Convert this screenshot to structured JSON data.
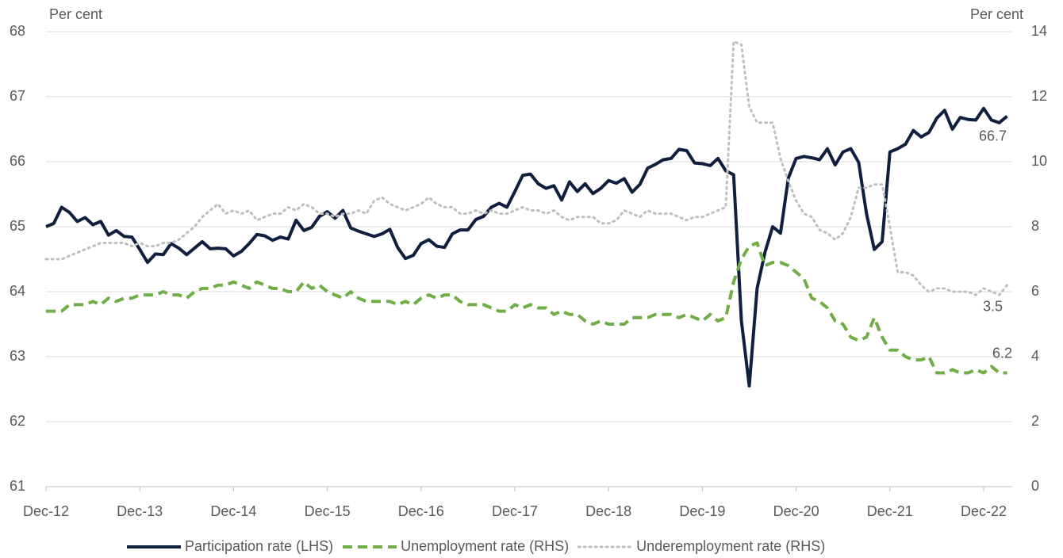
{
  "chart_data": {
    "type": "line",
    "y_label": "Per cent",
    "y2_label": "Per cent",
    "categories": [
      "Dec-12",
      null,
      null,
      null,
      null,
      null,
      null,
      null,
      null,
      null,
      null,
      null,
      "Dec-13",
      null,
      null,
      null,
      null,
      null,
      null,
      null,
      null,
      null,
      null,
      null,
      "Dec-14",
      null,
      null,
      null,
      null,
      null,
      null,
      null,
      null,
      null,
      null,
      null,
      "Dec-15",
      null,
      null,
      null,
      null,
      null,
      null,
      null,
      null,
      null,
      null,
      null,
      "Dec-16",
      null,
      null,
      null,
      null,
      null,
      null,
      null,
      null,
      null,
      null,
      null,
      "Dec-17",
      null,
      null,
      null,
      null,
      null,
      null,
      null,
      null,
      null,
      null,
      null,
      "Dec-18",
      null,
      null,
      null,
      null,
      null,
      null,
      null,
      null,
      null,
      null,
      null,
      "Dec-19",
      null,
      null,
      null,
      null,
      null,
      null,
      null,
      null,
      null,
      null,
      null,
      "Dec-20",
      null,
      null,
      null,
      null,
      null,
      null,
      null,
      null,
      null,
      null,
      null,
      "Dec-21",
      null,
      null,
      null,
      null,
      null,
      null,
      null,
      null,
      null,
      null,
      null,
      "Dec-22",
      null,
      null,
      null
    ],
    "series": [
      {
        "name": "Participation rate (LHS)",
        "color": "#0f1f3d",
        "dash": "solid",
        "axis": "y",
        "values": [
          65.0,
          65.05,
          65.3,
          65.22,
          65.08,
          65.14,
          65.03,
          65.08,
          64.87,
          64.94,
          64.85,
          64.84,
          64.65,
          64.45,
          64.58,
          64.57,
          64.74,
          64.67,
          64.57,
          64.67,
          64.77,
          64.66,
          64.67,
          64.66,
          64.55,
          64.62,
          64.74,
          64.88,
          64.86,
          64.79,
          64.84,
          64.81,
          65.1,
          64.94,
          64.99,
          65.16,
          65.23,
          65.13,
          65.25,
          64.98,
          64.93,
          64.89,
          64.85,
          64.89,
          64.96,
          64.68,
          64.51,
          64.56,
          64.74,
          64.8,
          64.7,
          64.68,
          64.89,
          64.95,
          64.95,
          65.11,
          65.16,
          65.3,
          65.36,
          65.3,
          65.54,
          65.79,
          65.81,
          65.66,
          65.59,
          65.63,
          65.41,
          65.69,
          65.54,
          65.66,
          65.51,
          65.59,
          65.71,
          65.67,
          65.74,
          65.53,
          65.65,
          65.9,
          65.96,
          66.03,
          66.05,
          66.19,
          66.17,
          65.98,
          65.97,
          65.94,
          66.05,
          65.86,
          65.8,
          63.55,
          62.55,
          64.05,
          64.6,
          65.0,
          64.9,
          65.75,
          66.05,
          66.08,
          66.06,
          66.03,
          66.2,
          65.95,
          66.15,
          66.2,
          65.99,
          65.2,
          64.65,
          64.77,
          66.15,
          66.2,
          66.27,
          66.48,
          66.38,
          66.45,
          66.67,
          66.79,
          66.5,
          66.68,
          66.65,
          66.64,
          66.82,
          66.64,
          66.6,
          66.7
        ]
      },
      {
        "name": "Unemployment rate (RHS)",
        "color": "#70ad47",
        "dash": "dashed",
        "axis": "y2",
        "values": [
          5.4,
          5.4,
          5.4,
          5.6,
          5.6,
          5.6,
          5.7,
          5.6,
          5.8,
          5.7,
          5.8,
          5.8,
          5.9,
          5.9,
          5.9,
          6.0,
          5.9,
          5.9,
          5.8,
          6.0,
          6.1,
          6.1,
          6.2,
          6.2,
          6.3,
          6.2,
          6.1,
          6.3,
          6.2,
          6.1,
          6.1,
          6.0,
          6.0,
          6.3,
          6.1,
          6.2,
          6.0,
          5.9,
          5.8,
          6.0,
          5.8,
          5.7,
          5.7,
          5.7,
          5.7,
          5.6,
          5.7,
          5.6,
          5.8,
          5.9,
          5.8,
          5.9,
          5.9,
          5.7,
          5.6,
          5.6,
          5.6,
          5.5,
          5.4,
          5.4,
          5.6,
          5.5,
          5.6,
          5.5,
          5.5,
          5.3,
          5.4,
          5.3,
          5.3,
          5.1,
          5.0,
          5.1,
          5.0,
          5.0,
          5.0,
          5.2,
          5.2,
          5.2,
          5.3,
          5.3,
          5.3,
          5.2,
          5.3,
          5.2,
          5.1,
          5.3,
          5.1,
          5.2,
          6.3,
          7.0,
          7.4,
          7.5,
          6.8,
          6.9,
          6.9,
          6.8,
          6.6,
          6.4,
          5.8,
          5.7,
          5.5,
          5.1,
          5.0,
          4.6,
          4.5,
          4.6,
          5.2,
          4.6,
          4.2,
          4.2,
          4.0,
          3.9,
          3.9,
          4.0,
          3.5,
          3.5,
          3.6,
          3.5,
          3.5,
          3.6,
          3.5,
          3.7,
          3.5,
          3.5
        ]
      },
      {
        "name": "Underemployment rate (RHS)",
        "color": "#bfbfbf",
        "dash": "dotted",
        "axis": "y2",
        "values": [
          7.0,
          7.0,
          7.0,
          7.1,
          7.2,
          7.3,
          7.4,
          7.5,
          7.5,
          7.5,
          7.5,
          7.4,
          7.5,
          7.4,
          7.4,
          7.5,
          7.5,
          7.6,
          7.8,
          8.0,
          8.3,
          8.5,
          8.7,
          8.4,
          8.5,
          8.4,
          8.5,
          8.2,
          8.3,
          8.4,
          8.4,
          8.6,
          8.5,
          8.7,
          8.6,
          8.4,
          8.4,
          8.3,
          8.4,
          8.4,
          8.5,
          8.4,
          8.8,
          8.9,
          8.7,
          8.6,
          8.5,
          8.6,
          8.7,
          8.9,
          8.7,
          8.6,
          8.6,
          8.4,
          8.4,
          8.5,
          8.4,
          8.5,
          8.4,
          8.4,
          8.5,
          8.6,
          8.5,
          8.5,
          8.4,
          8.5,
          8.3,
          8.2,
          8.3,
          8.3,
          8.3,
          8.1,
          8.1,
          8.2,
          8.5,
          8.4,
          8.3,
          8.5,
          8.4,
          8.4,
          8.4,
          8.3,
          8.2,
          8.3,
          8.3,
          8.4,
          8.5,
          8.6,
          13.7,
          13.6,
          11.7,
          11.2,
          11.2,
          11.2,
          10.1,
          9.4,
          8.8,
          8.4,
          8.3,
          7.9,
          7.8,
          7.6,
          7.8,
          8.3,
          9.2,
          9.2,
          9.3,
          9.3,
          8.0,
          6.6,
          6.6,
          6.5,
          6.2,
          6.0,
          6.1,
          6.1,
          6.0,
          6.0,
          6.0,
          5.9,
          6.1,
          6.0,
          5.9,
          6.2
        ]
      }
    ],
    "annotations": [
      "66.7",
      "6.2",
      "3.5"
    ],
    "ylim": [
      61,
      68
    ],
    "yticks": [
      61,
      62,
      63,
      64,
      65,
      66,
      67,
      68
    ],
    "y2lim": [
      0,
      14
    ],
    "y2ticks": [
      0,
      2,
      4,
      6,
      8,
      10,
      12,
      14
    ],
    "grid": true,
    "legend": "bottom"
  }
}
